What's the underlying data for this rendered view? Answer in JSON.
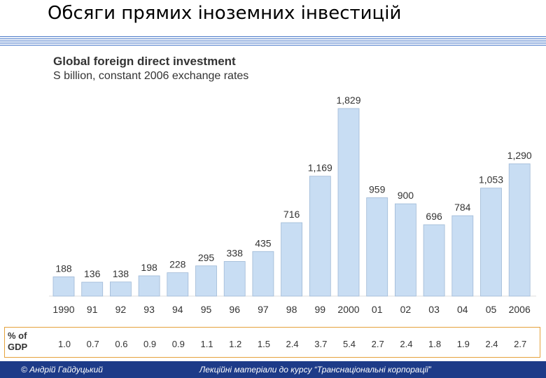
{
  "slide": {
    "title": "Обсяги прямих іноземних інвестицій"
  },
  "chart_data": {
    "type": "bar",
    "title": "Global foreign direct investment",
    "subtitle": "S billion, constant 2006 exchange rates",
    "categories": [
      "1990",
      "91",
      "92",
      "93",
      "94",
      "95",
      "96",
      "97",
      "98",
      "99",
      "2000",
      "01",
      "02",
      "03",
      "04",
      "05",
      "2006"
    ],
    "values": [
      188,
      136,
      138,
      198,
      228,
      295,
      338,
      435,
      716,
      1169,
      1829,
      959,
      900,
      696,
      784,
      1053,
      1290
    ],
    "value_labels": [
      "188",
      "136",
      "138",
      "198",
      "228",
      "295",
      "338",
      "435",
      "716",
      "1,169",
      "1,829",
      "959",
      "900",
      "696",
      "784",
      "1,053",
      "1,290"
    ],
    "ylim": [
      0,
      1829
    ],
    "bar_color": "#c8ddf3",
    "bar_border": "#9fb9d6",
    "gdp": {
      "label_line1": "% of",
      "label_line2": "GDP",
      "values": [
        "1.0",
        "0.7",
        "0.6",
        "0.9",
        "0.9",
        "1.1",
        "1.2",
        "1.5",
        "2.4",
        "3.7",
        "5.4",
        "2.7",
        "2.4",
        "1.8",
        "1.9",
        "2.4",
        "2.7"
      ]
    }
  },
  "footer": {
    "author": "© Андрій Гайдуцький",
    "course": "Лекційні матеріали до курсу “Транснаціональні корпорації”"
  },
  "colors": {
    "accent": "#3b6fc4",
    "footer_bg": "#1d3b88",
    "gdp_border": "#e5a23c"
  }
}
